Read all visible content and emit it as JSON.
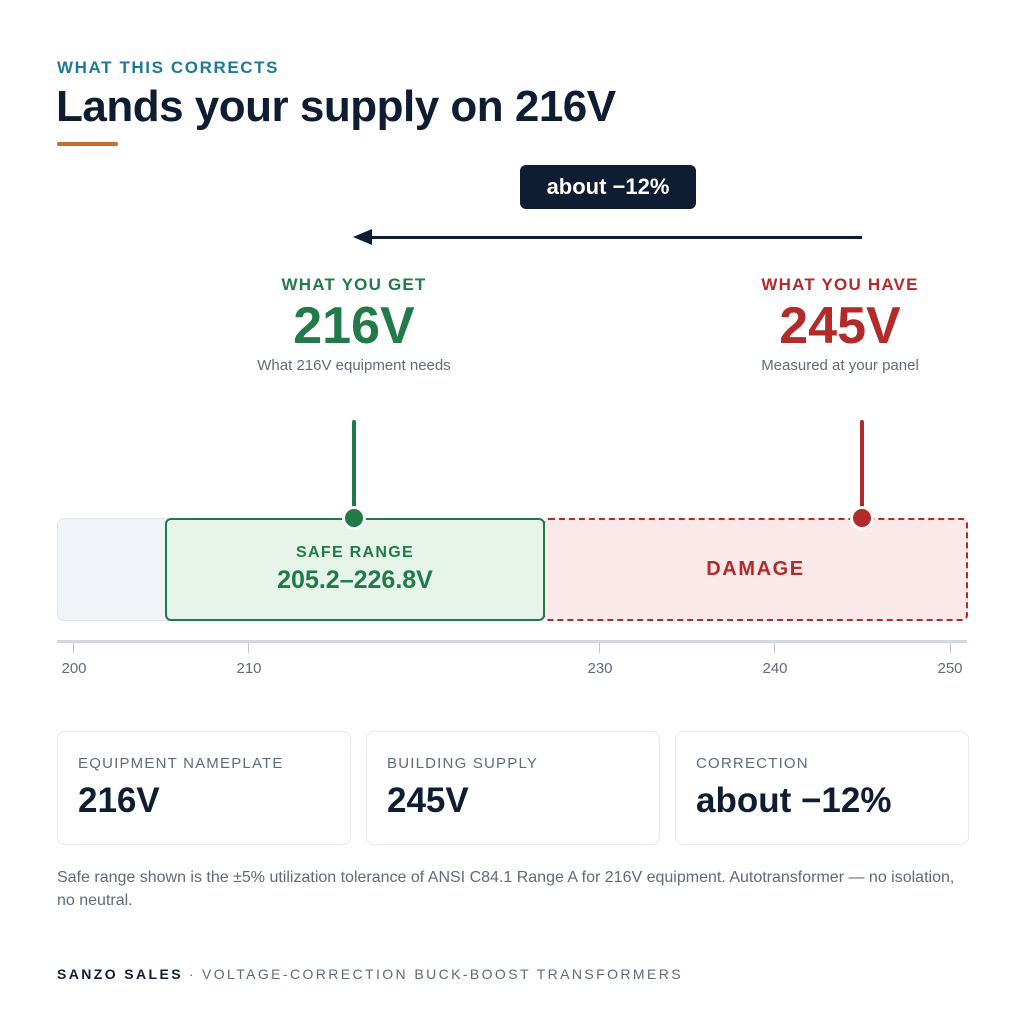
{
  "header": {
    "eyebrow": "WHAT THIS CORRECTS",
    "title": "Lands your supply on 216V"
  },
  "arrow": {
    "label": "about −12%"
  },
  "callouts": {
    "get": {
      "label": "WHAT YOU GET",
      "value": "216V",
      "sub": "What 216V equipment needs"
    },
    "have": {
      "label": "WHAT YOU HAVE",
      "value": "245V",
      "sub": "Measured at your panel"
    }
  },
  "scale": {
    "min": 200,
    "max": 250,
    "ticks": [
      "200",
      "210",
      "230",
      "240",
      "250"
    ],
    "target_value": 216,
    "measured_value": 245,
    "safe_band": {
      "label": "SAFE RANGE",
      "range_text": "205.2–226.8V",
      "from": 205.2,
      "to": 226.8
    },
    "damage_band": {
      "label": "DAMAGE",
      "from": 226.8,
      "to": 250
    }
  },
  "cards": [
    {
      "label": "EQUIPMENT NAMEPLATE",
      "value": "216V"
    },
    {
      "label": "BUILDING SUPPLY",
      "value": "245V"
    },
    {
      "label": "CORRECTION",
      "value": "about −12%"
    }
  ],
  "footnote": "Safe range shown is the ±5% utilization tolerance of ANSI C84.1 Range A for 216V equipment. Autotransformer — no isolation, no neutral.",
  "footer": {
    "brand": "SANZO SALES",
    "separator": "·",
    "tagline": "VOLTAGE-CORRECTION BUCK-BOOST TRANSFORMERS"
  },
  "colors": {
    "accent": "#1c7a99",
    "navy": "#0f1d33",
    "orange_rule": "#c96a2e",
    "safe_green": "#217a49",
    "damage_red": "#b32a2a"
  }
}
